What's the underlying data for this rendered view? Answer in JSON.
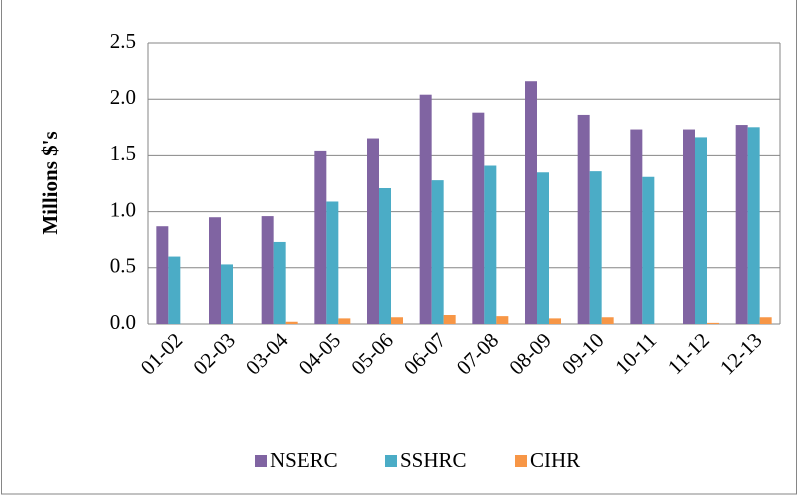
{
  "chart_data": {
    "type": "bar",
    "y_label": "Millions $'s",
    "categories": [
      "01-02",
      "02-03",
      "03-04",
      "04-05",
      "05-06",
      "06-07",
      "07-08",
      "08-09",
      "09-10",
      "10-11",
      "11-12",
      "12-13"
    ],
    "series": [
      {
        "name": "NSERC",
        "color": "#8064a2",
        "values": [
          0.87,
          0.95,
          0.96,
          1.54,
          1.65,
          2.04,
          1.88,
          2.16,
          1.86,
          1.73,
          1.73,
          1.77
        ]
      },
      {
        "name": "SSHRC",
        "color": "#4bacc6",
        "values": [
          0.6,
          0.53,
          0.73,
          1.09,
          1.21,
          1.28,
          1.41,
          1.35,
          1.36,
          1.31,
          1.66,
          1.75
        ]
      },
      {
        "name": "CIHR",
        "color": "#f79646",
        "values": [
          0,
          0,
          0.02,
          0.05,
          0.06,
          0.08,
          0.07,
          0.05,
          0.06,
          0,
          0.01,
          0.06
        ]
      }
    ],
    "ylim": [
      0,
      2.5
    ],
    "yticks": [
      {
        "value": 0,
        "label": "0.0"
      },
      0.5,
      {
        "value": 1,
        "label": "1.0"
      },
      1.5,
      {
        "value": 2,
        "label": "2.0"
      },
      2.5
    ],
    "grid": true,
    "legend": "bottom"
  }
}
